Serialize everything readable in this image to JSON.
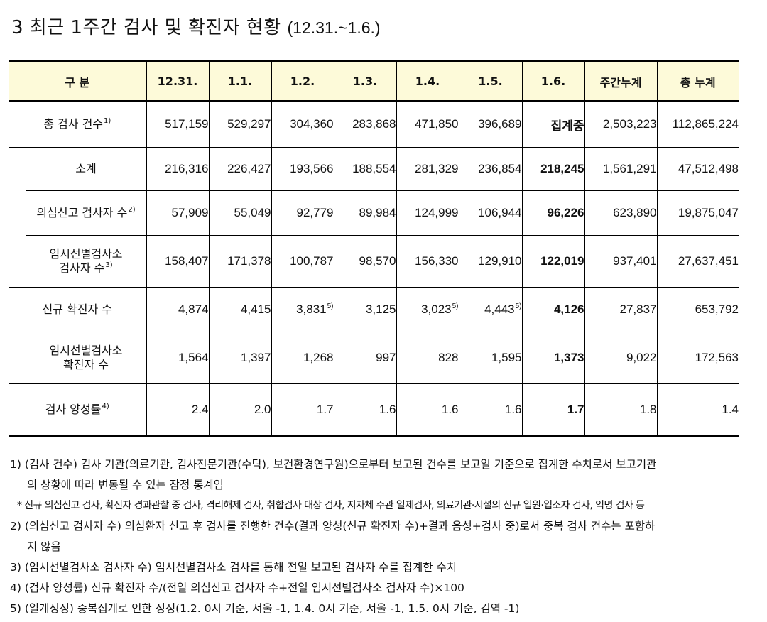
{
  "title": {
    "text": "3  최근 1주간 검사 및 확진자 현황",
    "date_range": "(12.31.~1.6.)"
  },
  "table": {
    "headers": [
      "구 분",
      "12.31.",
      "1.1.",
      "1.2.",
      "1.3.",
      "1.4.",
      "1.5.",
      "1.6.",
      "주간누계",
      "총 누계"
    ],
    "rows": [
      {
        "label": "총 검사 건수",
        "note": "1)",
        "indent": false,
        "values": [
          "517,159",
          "529,297",
          "304,360",
          "283,868",
          "471,850",
          "396,689",
          "집계중",
          "2,503,223",
          "112,865,224"
        ],
        "value_notes": [
          "",
          "",
          "",
          "",
          "",
          "",
          "",
          "",
          ""
        ]
      },
      {
        "label": "소계",
        "note": "",
        "indent": true,
        "values": [
          "216,316",
          "226,427",
          "193,566",
          "188,554",
          "281,329",
          "236,854",
          "218,245",
          "1,561,291",
          "47,512,498"
        ],
        "value_notes": [
          "",
          "",
          "",
          "",
          "",
          "",
          "",
          "",
          ""
        ]
      },
      {
        "label": "의심신고 검사자 수",
        "note": "2)",
        "indent": true,
        "values": [
          "57,909",
          "55,049",
          "92,779",
          "89,984",
          "124,999",
          "106,944",
          "96,226",
          "623,890",
          "19,875,047"
        ],
        "value_notes": [
          "",
          "",
          "",
          "",
          "",
          "",
          "",
          "",
          ""
        ]
      },
      {
        "label": "임시선별검사소",
        "label2": "검사자 수",
        "note": "3)",
        "indent": true,
        "values": [
          "158,407",
          "171,378",
          "100,787",
          "98,570",
          "156,330",
          "129,910",
          "122,019",
          "937,401",
          "27,637,451"
        ],
        "value_notes": [
          "",
          "",
          "",
          "",
          "",
          "",
          "",
          "",
          ""
        ]
      },
      {
        "label": "신규 확진자 수",
        "note": "",
        "indent": false,
        "values": [
          "4,874",
          "4,415",
          "3,831",
          "3,125",
          "3,023",
          "4,443",
          "4,126",
          "27,837",
          "653,792"
        ],
        "value_notes": [
          "",
          "",
          "5)",
          "",
          "5)",
          "5)",
          "",
          "",
          ""
        ]
      },
      {
        "label": "임시선별검사소",
        "label2": "확진자 수",
        "note": "",
        "indent": true,
        "values": [
          "1,564",
          "1,397",
          "1,268",
          "997",
          "828",
          "1,595",
          "1,373",
          "9,022",
          "172,563"
        ],
        "value_notes": [
          "",
          "",
          "",
          "",
          "",
          "",
          "",
          "",
          ""
        ]
      },
      {
        "label": "검사 양성률",
        "note": "4)",
        "indent": false,
        "values": [
          "2.4",
          "2.0",
          "1.7",
          "1.6",
          "1.6",
          "1.6",
          "1.7",
          "1.8",
          "1.4"
        ],
        "value_notes": [
          "",
          "",
          "",
          "",
          "",
          "",
          "",
          "",
          ""
        ]
      }
    ]
  },
  "notes": {
    "n1": "1) (검사 건수) 검사 기관(의료기관, 검사전문기관(수탁), 보건환경연구원)으로부터 보고된 건수를 보고일 기준으로 집계한 수치로서 보고기관",
    "n1_cont": "의 상황에 따라 변동될 수 있는 잠정 통계임",
    "n1_star": "* 신규 의심신고 검사, 확진자 경과관찰 중 검사, 격리해제 검사, 취합검사 대상 검사, 지자체 주관 일제검사, 의료기관·시설의 신규 입원·입소자 검사, 익명 검사 등",
    "n2": "2) (의심신고 검사자 수) 의심환자 신고 후 검사를 진행한 건수(결과 양성(신규 확진자 수)+결과 음성+검사 중)로서 중복 검사 건수는 포함하",
    "n2_cont": "지 않음",
    "n3": "3) (임시선별검사소 검사자 수) 임시선별검사소 검사를 통해 전일 보고된 검사자 수를 집계한 수치",
    "n4": "4) (검사 양성률) 신규 확진자 수/(전일 의심신고 검사자 수+전일 임시선별검사소 검사자 수)×100",
    "n5": "5) (일계정정) 중복집계로 인한 정정(1.2. 0시 기준, 서울 -1, 1.4. 0시 기준, 서울 -1, 1.5. 0시 기준, 검역 -1)"
  }
}
